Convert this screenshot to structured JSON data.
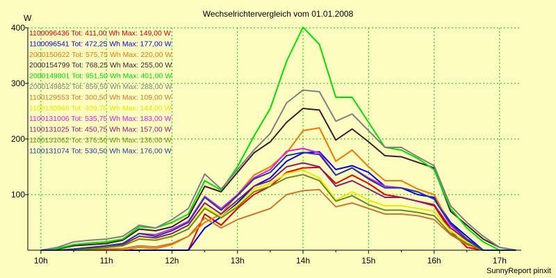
{
  "chart_data": {
    "type": "line",
    "title": "Wechselrichtervergleich vom 01.01.2008",
    "ylabel": "W",
    "xlabel": "",
    "footer": "SunnyReport pinxit",
    "ylim": [
      0,
      400
    ],
    "xlim": [
      9.8,
      17.33
    ],
    "y_ticks": [
      100,
      200,
      300,
      400
    ],
    "x_ticks": [
      {
        "v": 10,
        "label": "10h"
      },
      {
        "v": 11,
        "label": "11h"
      },
      {
        "v": 12,
        "label": "12h"
      },
      {
        "v": 13,
        "label": "13h"
      },
      {
        "v": 14,
        "label": "14h"
      },
      {
        "v": 15,
        "label": "15h"
      },
      {
        "v": 16,
        "label": "16h"
      },
      {
        "v": 17,
        "label": "17h"
      }
    ],
    "grid": true,
    "background_color": "#fdfdc0",
    "legend_position": "top-left",
    "x": [
      10.0,
      10.25,
      10.5,
      10.75,
      11.0,
      11.25,
      11.5,
      11.75,
      12.0,
      12.25,
      12.5,
      12.75,
      13.0,
      13.25,
      13.5,
      13.75,
      14.0,
      14.25,
      14.5,
      14.75,
      15.0,
      15.25,
      15.5,
      15.75,
      16.0,
      16.25,
      16.5,
      16.75,
      17.0,
      17.25
    ],
    "series": [
      {
        "name": "1100096436",
        "label": "1100096436 Tot: 411,00 Wh Max: 149,00 W",
        "color": "#e00000",
        "values": [
          0,
          0,
          0,
          0,
          0,
          0,
          0,
          0,
          0,
          0,
          65,
          45,
          75,
          100,
          115,
          140,
          148,
          149,
          120,
          135,
          120,
          100,
          95,
          88,
          80,
          35,
          5,
          0,
          0,
          0
        ]
      },
      {
        "name": "1100096541",
        "label": "1100096541 Tot: 472,25 Wh Max: 177,00 W",
        "color": "#0000dd",
        "values": [
          0,
          0,
          0,
          0,
          0,
          0,
          0,
          0,
          0,
          0,
          40,
          60,
          85,
          115,
          130,
          160,
          175,
          177,
          145,
          152,
          140,
          115,
          112,
          100,
          95,
          50,
          25,
          0,
          0,
          0
        ]
      },
      {
        "name": "2000150622",
        "label": "2000150622 Tot: 575,75 Wh Max: 220,00 W",
        "color": "#f07800",
        "values": [
          0,
          0,
          0,
          0,
          0,
          0,
          5,
          3,
          10,
          25,
          50,
          65,
          100,
          135,
          150,
          175,
          215,
          220,
          160,
          180,
          150,
          125,
          125,
          110,
          100,
          45,
          15,
          0,
          0,
          0
        ]
      },
      {
        "name": "2000154799",
        "label": "2000154799 Tot: 768,25 Wh Max: 255,00 W",
        "color": "#3c1c28",
        "values": [
          0,
          2,
          8,
          10,
          12,
          18,
          38,
          35,
          42,
          60,
          115,
          105,
          140,
          175,
          195,
          230,
          255,
          252,
          198,
          218,
          195,
          170,
          168,
          158,
          148,
          70,
          45,
          20,
          5,
          0
        ]
      },
      {
        "name": "2000149801",
        "label": "2000149801 Tot: 951,50 Wh Max: 401,00 W",
        "color": "#00dd00",
        "values": [
          0,
          3,
          10,
          13,
          15,
          20,
          42,
          40,
          50,
          65,
          125,
          108,
          150,
          205,
          255,
          340,
          401,
          370,
          275,
          275,
          230,
          185,
          180,
          165,
          145,
          75,
          40,
          15,
          0,
          0
        ]
      },
      {
        "name": "2000149852",
        "label": "2000149852 Tot: 859,50 Wh Max: 288,00 W",
        "color": "#808080",
        "values": [
          0,
          5,
          15,
          18,
          20,
          25,
          45,
          40,
          55,
          75,
          137,
          110,
          145,
          180,
          210,
          265,
          288,
          285,
          232,
          245,
          215,
          185,
          185,
          168,
          152,
          80,
          50,
          25,
          5,
          0
        ]
      },
      {
        "name": "1100129553",
        "label": "1100129553 Tot: 300,50 Wh Max: 109,00 W",
        "color": "#c87832",
        "values": [
          0,
          0,
          0,
          0,
          2,
          3,
          8,
          6,
          12,
          25,
          58,
          40,
          55,
          65,
          75,
          100,
          107,
          109,
          78,
          85,
          75,
          65,
          65,
          62,
          55,
          28,
          10,
          0,
          0,
          0
        ]
      },
      {
        "name": "1100130966",
        "label": "1100130966 Tot: 409,75 Wh Max: 144,00 W",
        "color": "#e8e800",
        "values": [
          0,
          0,
          0,
          2,
          5,
          8,
          20,
          18,
          25,
          38,
          78,
          60,
          82,
          110,
          120,
          138,
          144,
          130,
          90,
          105,
          90,
          80,
          80,
          75,
          70,
          35,
          15,
          0,
          0,
          0
        ]
      },
      {
        "name": "1100131006",
        "label": "1100131006 Tot: 535,75 Wh Max: 183,00 W",
        "color": "#e020e0",
        "values": [
          0,
          0,
          2,
          5,
          8,
          12,
          30,
          28,
          38,
          52,
          97,
          75,
          100,
          130,
          145,
          178,
          183,
          175,
          135,
          148,
          130,
          115,
          112,
          105,
          92,
          45,
          20,
          0,
          0,
          0
        ]
      },
      {
        "name": "1100131025",
        "label": "1100131025 Tot: 450,75 Wh Max: 157,00 W",
        "color": "#8c1c6e",
        "values": [
          0,
          0,
          0,
          3,
          5,
          10,
          25,
          22,
          30,
          45,
          85,
          65,
          90,
          115,
          125,
          150,
          157,
          150,
          115,
          125,
          110,
          95,
          95,
          88,
          82,
          40,
          18,
          0,
          0,
          0
        ]
      },
      {
        "name": "1100131062",
        "label": "1100131062 Tot: 376,50 Wh Max: 136,00 W",
        "color": "#6e8c0a",
        "values": [
          0,
          0,
          0,
          2,
          5,
          8,
          20,
          18,
          25,
          38,
          75,
          58,
          78,
          105,
          115,
          130,
          136,
          125,
          88,
          98,
          82,
          72,
          72,
          68,
          62,
          30,
          12,
          0,
          0,
          0
        ]
      },
      {
        "name": "1100131074",
        "label": "1100131074 Tot: 530,50 Wh Max: 176,00 W",
        "color": "#1e3ca0",
        "values": [
          0,
          0,
          2,
          5,
          8,
          12,
          30,
          25,
          35,
          50,
          95,
          72,
          98,
          128,
          140,
          170,
          176,
          172,
          135,
          148,
          128,
          112,
          112,
          105,
          92,
          48,
          20,
          0,
          0,
          0
        ]
      }
    ]
  }
}
